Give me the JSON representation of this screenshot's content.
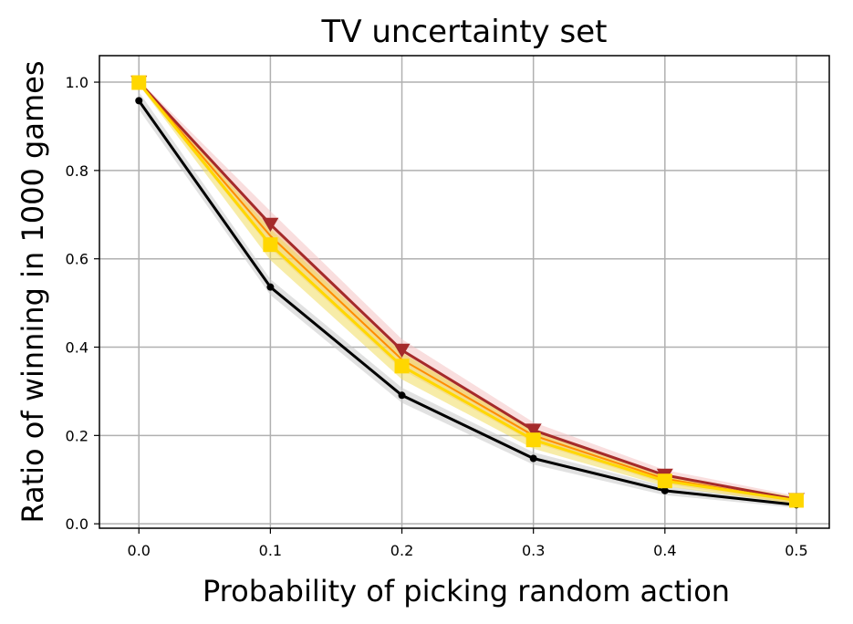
{
  "chart_data": {
    "type": "line",
    "title": "TV uncertainty set",
    "xlabel": "Probability of picking random action",
    "ylabel": "Ratio of winning in 1000 games",
    "x": [
      0.0,
      0.1,
      0.2,
      0.3,
      0.4,
      0.5
    ],
    "xticks": [
      "0.0",
      "0.1",
      "0.2",
      "0.3",
      "0.4",
      "0.5"
    ],
    "yticks": [
      "0.0",
      "0.2",
      "0.4",
      "0.6",
      "0.8",
      "1.0"
    ],
    "xlim": [
      -0.03,
      0.525
    ],
    "ylim": [
      -0.01,
      1.06
    ],
    "grid": true,
    "series": [
      {
        "color": "#000000",
        "band_color": "#c8c8c8",
        "marker": "circle",
        "values": [
          0.958,
          0.536,
          0.291,
          0.148,
          0.075,
          0.043
        ],
        "band": [
          0.02,
          0.018,
          0.017,
          0.014,
          0.01,
          0.007
        ]
      },
      {
        "color": "#a52a2a",
        "band_color": "#f4c2c2",
        "marker": "triangle-down",
        "values": [
          1.0,
          0.678,
          0.393,
          0.212,
          0.11,
          0.055
        ],
        "band": [
          0.005,
          0.03,
          0.025,
          0.018,
          0.012,
          0.008
        ]
      },
      {
        "color": "#ff8c00",
        "band_color": "#f6c68a",
        "marker": "none",
        "values": [
          0.999,
          0.652,
          0.372,
          0.2,
          0.102,
          0.052
        ],
        "band": [
          0.005,
          0.028,
          0.023,
          0.016,
          0.011,
          0.007
        ]
      },
      {
        "color": "#ffd700",
        "band_color": "#f0dc60",
        "marker": "square",
        "values": [
          0.999,
          0.632,
          0.357,
          0.19,
          0.097,
          0.053
        ],
        "band": [
          0.005,
          0.035,
          0.03,
          0.02,
          0.012,
          0.008
        ]
      }
    ]
  }
}
